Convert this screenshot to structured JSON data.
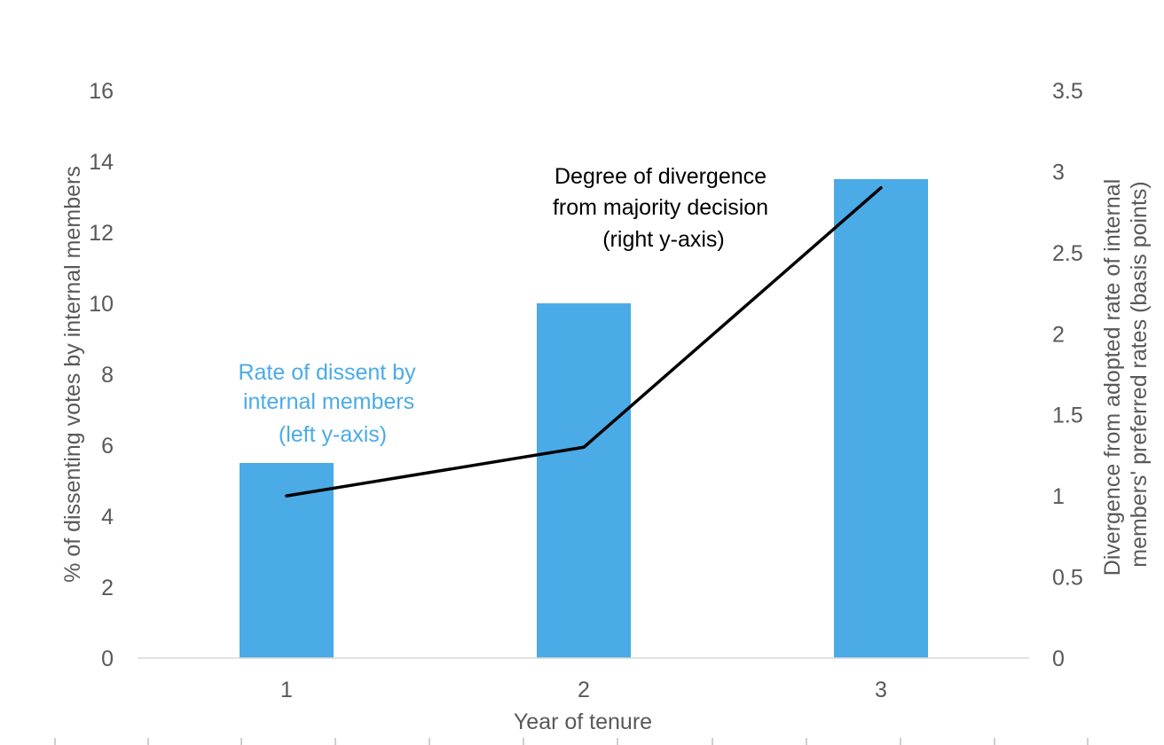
{
  "colors": {
    "bar": "#4AABE6",
    "line": "#000000",
    "axis_text": "#595959",
    "axis_line": "#D9D9D9"
  },
  "chart_data": {
    "type": "bar",
    "categories": [
      "1",
      "2",
      "3"
    ],
    "series": [
      {
        "type": "bar",
        "axis": "left",
        "values": [
          5.5,
          10.0,
          13.5
        ]
      },
      {
        "type": "line",
        "axis": "right",
        "values": [
          1.0,
          1.3,
          2.9
        ]
      }
    ],
    "xlabel": "Year of tenure",
    "ylabel": "% of dissenting votes by internal members",
    "y2label_lines": [
      "Divergence from adopted rate of internal",
      "members' preferred rates (basis points)"
    ],
    "ylim": [
      0,
      16
    ],
    "y2lim": [
      0,
      3.5
    ],
    "yticks": [
      "0",
      "2",
      "4",
      "6",
      "8",
      "10",
      "12",
      "14",
      "16"
    ],
    "y2ticks": [
      "0",
      "0.5",
      "1",
      "1.5",
      "2",
      "2.5",
      "3",
      "3.5"
    ],
    "annotations": {
      "bars": [
        "Rate of dissent by",
        "internal members",
        "(left y-axis)"
      ],
      "line": [
        "Degree of divergence",
        "from majority decision",
        "(right y-axis)"
      ]
    },
    "grid": false,
    "legend": "none"
  }
}
